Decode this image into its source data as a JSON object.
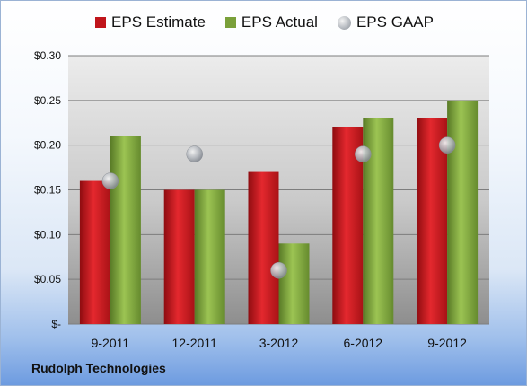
{
  "chart_data": {
    "type": "bar",
    "categories": [
      "9-2011",
      "12-2011",
      "3-2012",
      "6-2012",
      "9-2012"
    ],
    "series": [
      {
        "name": "EPS Estimate",
        "kind": "bar",
        "color": "#c0151b",
        "values": [
          0.16,
          0.15,
          0.17,
          0.22,
          0.23
        ]
      },
      {
        "name": "EPS Actual",
        "kind": "bar",
        "color": "#7aa03a",
        "values": [
          0.21,
          0.15,
          0.09,
          0.23,
          0.25
        ]
      },
      {
        "name": "EPS GAAP",
        "kind": "marker",
        "color": "#a9adb3",
        "values": [
          0.16,
          0.19,
          0.06,
          0.19,
          0.2
        ]
      }
    ],
    "ylim": [
      0,
      0.3
    ],
    "yticks": [
      {
        "value": 0.3,
        "label": "$0.30"
      },
      {
        "value": 0.25,
        "label": "$0.25"
      },
      {
        "value": 0.2,
        "label": "$0.20"
      },
      {
        "value": 0.15,
        "label": "$0.15"
      },
      {
        "value": 0.1,
        "label": "$0.10"
      },
      {
        "value": 0.05,
        "label": "$0.05"
      },
      {
        "value": 0.0,
        "label": "$-"
      }
    ],
    "grid": true,
    "legend_position": "top"
  },
  "company_name": "Rudolph Technologies"
}
